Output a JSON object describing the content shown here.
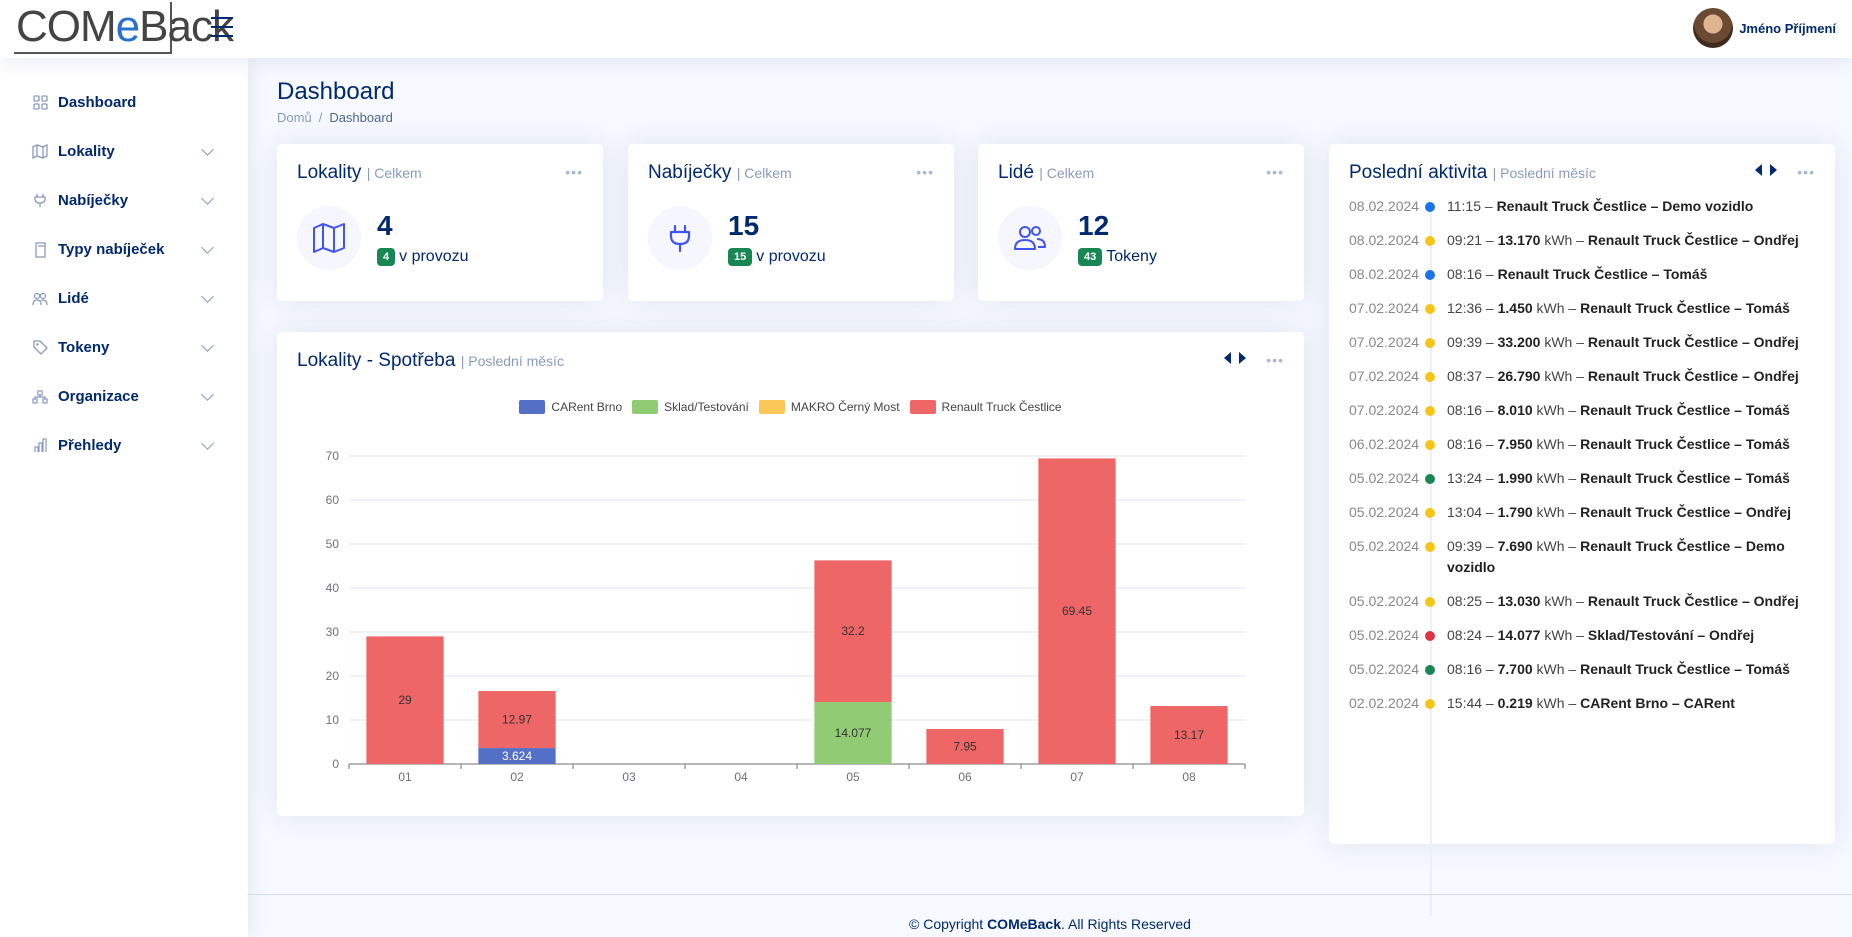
{
  "header": {
    "logo": {
      "part1": "COM",
      "part2": "e",
      "part3": "Back"
    },
    "user_name": "Jméno Příjmení"
  },
  "sidebar": {
    "items": [
      {
        "label": "Dashboard",
        "icon": "grid-icon"
      },
      {
        "label": "Lokality",
        "icon": "map-icon"
      },
      {
        "label": "Nabíječky",
        "icon": "plug-icon"
      },
      {
        "label": "Typy nabíječek",
        "icon": "document-icon"
      },
      {
        "label": "Lidé",
        "icon": "people-icon"
      },
      {
        "label": "Tokeny",
        "icon": "tag-icon"
      },
      {
        "label": "Organizace",
        "icon": "diagram-icon"
      },
      {
        "label": "Přehledy",
        "icon": "bar-chart-icon"
      }
    ]
  },
  "page": {
    "title": "Dashboard",
    "breadcrumb": [
      "Domů",
      "Dashboard"
    ]
  },
  "cards": {
    "lokality": {
      "title": "Lokality",
      "sub": "| Celkem",
      "value": "4",
      "badge": "4",
      "text": "v provozu"
    },
    "nabijecky": {
      "title": "Nabíječky",
      "sub": "| Celkem",
      "value": "15",
      "badge": "15",
      "text": "v provozu"
    },
    "lide": {
      "title": "Lidé",
      "sub": "| Celkem",
      "value": "12",
      "badge": "43",
      "text": "Tokeny"
    }
  },
  "chart_card": {
    "title": "Lokality - Spotřeba",
    "sub": "| Poslední měsíc"
  },
  "chart_data": {
    "type": "bar",
    "stacked": true,
    "categories": [
      "01",
      "02",
      "03",
      "04",
      "05",
      "06",
      "07",
      "08"
    ],
    "series": [
      {
        "name": "CARent Brno",
        "color": "#5470c6",
        "values": [
          0,
          3.624,
          0,
          0,
          0,
          0,
          0,
          0
        ]
      },
      {
        "name": "Sklad/Testování",
        "color": "#91cc75",
        "values": [
          0,
          0,
          0,
          0,
          14.077,
          0,
          0,
          0
        ]
      },
      {
        "name": "MAKRO Černý Most",
        "color": "#fac858",
        "values": [
          0,
          0,
          0,
          0,
          0,
          0,
          0,
          0
        ]
      },
      {
        "name": "Renault Truck Čestlice",
        "color": "#ee6666",
        "values": [
          29.0,
          12.97,
          0,
          0,
          32.2,
          7.95,
          69.45,
          13.17
        ]
      }
    ],
    "ylim": [
      0,
      70
    ],
    "yticks": [
      0,
      10,
      20,
      30,
      40,
      50,
      60,
      70
    ],
    "legend_position": "top-center",
    "grid": true
  },
  "activity": {
    "title": "Poslední aktivita",
    "sub": "| Poslední měsíc",
    "items": [
      {
        "date": "08.02.2024",
        "color": "#1a73e8",
        "time": "11:15 –",
        "kwh": "",
        "unit": "",
        "place": "Renault Truck Čestlice – Demo vozidlo"
      },
      {
        "date": "08.02.2024",
        "color": "#f5c518",
        "time": "09:21 –",
        "kwh": "13.170",
        "unit": "kWh –",
        "place": "Renault Truck Čestlice – Ondřej"
      },
      {
        "date": "08.02.2024",
        "color": "#1a73e8",
        "time": "08:16 –",
        "kwh": "",
        "unit": "",
        "place": "Renault Truck Čestlice – Tomáš"
      },
      {
        "date": "07.02.2024",
        "color": "#f5c518",
        "time": "12:36 –",
        "kwh": "1.450",
        "unit": "kWh –",
        "place": "Renault Truck Čestlice – Tomáš"
      },
      {
        "date": "07.02.2024",
        "color": "#f5c518",
        "time": "09:39 –",
        "kwh": "33.200",
        "unit": "kWh –",
        "place": "Renault Truck Čestlice – Ondřej"
      },
      {
        "date": "07.02.2024",
        "color": "#f5c518",
        "time": "08:37 –",
        "kwh": "26.790",
        "unit": "kWh –",
        "place": "Renault Truck Čestlice – Ondřej"
      },
      {
        "date": "07.02.2024",
        "color": "#f5c518",
        "time": "08:16 –",
        "kwh": "8.010",
        "unit": "kWh –",
        "place": "Renault Truck Čestlice – Tomáš"
      },
      {
        "date": "06.02.2024",
        "color": "#f5c518",
        "time": "08:16 –",
        "kwh": "7.950",
        "unit": "kWh –",
        "place": "Renault Truck Čestlice – Tomáš"
      },
      {
        "date": "05.02.2024",
        "color": "#198754",
        "time": "13:24 –",
        "kwh": "1.990",
        "unit": "kWh –",
        "place": "Renault Truck Čestlice – Tomáš"
      },
      {
        "date": "05.02.2024",
        "color": "#f5c518",
        "time": "13:04 –",
        "kwh": "1.790",
        "unit": "kWh –",
        "place": "Renault Truck Čestlice – Ondřej"
      },
      {
        "date": "05.02.2024",
        "color": "#f5c518",
        "time": "09:39 –",
        "kwh": "7.690",
        "unit": "kWh –",
        "place": "Renault Truck Čestlice – Demo vozidlo"
      },
      {
        "date": "05.02.2024",
        "color": "#f5c518",
        "time": "08:25 –",
        "kwh": "13.030",
        "unit": "kWh –",
        "place": "Renault Truck Čestlice – Ondřej"
      },
      {
        "date": "05.02.2024",
        "color": "#dc3545",
        "time": "08:24 –",
        "kwh": "14.077",
        "unit": "kWh –",
        "place": "Sklad/Testování – Ondřej"
      },
      {
        "date": "05.02.2024",
        "color": "#198754",
        "time": "08:16 –",
        "kwh": "7.700",
        "unit": "kWh –",
        "place": "Renault Truck Čestlice – Tomáš"
      },
      {
        "date": "02.02.2024",
        "color": "#f5c518",
        "time": "15:44 –",
        "kwh": "0.219",
        "unit": "kWh –",
        "place": "CARent Brno – CARent"
      }
    ]
  },
  "footer": {
    "prefix": "© Copyright",
    "brand": "COMeBack",
    "suffix": ". All Rights Reserved"
  }
}
